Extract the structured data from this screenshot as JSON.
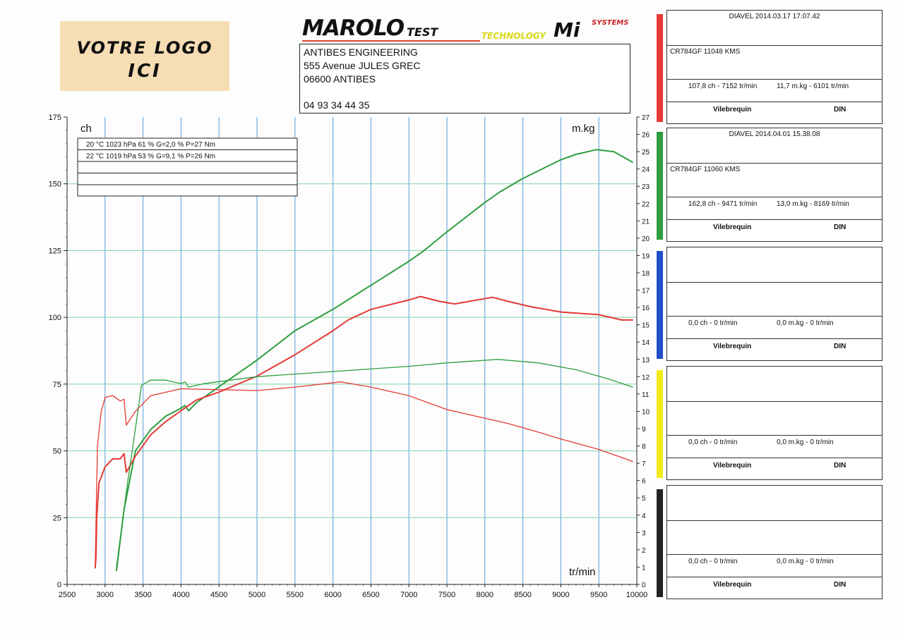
{
  "logo": {
    "line1": "VOTRE LOGO",
    "line2": "ICI"
  },
  "brand": {
    "name": "MAROLO",
    "suffix": "TEST",
    "technology": "TECHNOLOGY",
    "mi": "Mi",
    "systems": "SYSTEMS"
  },
  "address": {
    "line1": "ANTIBES ENGINEERING",
    "line2": "555 Avenue JULES GREC",
    "line3": "06600 ANTIBES",
    "phone": "04 93 34 44 35"
  },
  "legend_table": {
    "rows": [
      "20 °C   1023 hPa   61 %   G=2,0 %   P=27 Nm",
      "22 °C   1019 hPa   53 %   G=9,1 %   P=26 Nm",
      "",
      ""
    ]
  },
  "runs": [
    {
      "color": "#e53935",
      "header": "DIAVEL   2014.03.17 17.07.42",
      "vehicle": "CR784GF    11048 KMS",
      "power": "107,8 ch - 7152 tr/min",
      "torque": "11,7 m.kg - 6101 tr/min",
      "mode": "Vilebrequin",
      "norm": "DIN"
    },
    {
      "color": "#2e9e3e",
      "header": "DIAVEL   2014.04.01 15.38.08",
      "vehicle": "CR784GF   11060 KMS",
      "power": "162,8 ch - 9471 tr/min",
      "torque": "13,0 m.kg - 8169 tr/min",
      "mode": "Vilebrequin",
      "norm": "DIN"
    },
    {
      "color": "#1e4fc8",
      "header": "",
      "vehicle": "",
      "power": "0,0 ch - 0 tr/min",
      "torque": "0,0 m.kg - 0 tr/min",
      "mode": "Vilebrequin",
      "norm": "DIN"
    },
    {
      "color": "#f2ea1a",
      "header": "",
      "vehicle": "",
      "power": "0,0 ch - 0 tr/min",
      "torque": "0,0 m.kg - 0 tr/min",
      "mode": "Vilebrequin",
      "norm": "DIN"
    },
    {
      "color": "#222222",
      "header": "",
      "vehicle": "",
      "power": "0,0 ch - 0 tr/min",
      "torque": "0,0 m.kg - 0 tr/min",
      "mode": "Vilebrequin",
      "norm": "DIN"
    }
  ],
  "chart_data": {
    "type": "line",
    "xlabel": "tr/min",
    "ylabel": "ch",
    "y2label": "m.kg",
    "xlim": [
      2500,
      10000
    ],
    "ylim": [
      0,
      175
    ],
    "y2lim": [
      0,
      27
    ],
    "xticks": [
      2500,
      3000,
      3500,
      4000,
      4500,
      5000,
      5500,
      6000,
      6500,
      7000,
      7500,
      8000,
      8500,
      9000,
      9500,
      10000
    ],
    "yticks": [
      0,
      25,
      50,
      75,
      100,
      125,
      150,
      175
    ],
    "y2ticks": [
      0,
      1,
      2,
      3,
      4,
      5,
      6,
      7,
      8,
      9,
      10,
      11,
      12,
      13,
      14,
      15,
      16,
      17,
      18,
      19,
      20,
      21,
      22,
      23,
      24,
      25,
      26,
      27
    ],
    "grid": true,
    "series": [
      {
        "color": "#2e9e3e",
        "axis": "power",
        "width": 2,
        "points": [
          [
            3150,
            5
          ],
          [
            3250,
            28
          ],
          [
            3400,
            50
          ],
          [
            3600,
            58
          ],
          [
            3800,
            63
          ],
          [
            4000,
            66
          ],
          [
            4050,
            67
          ],
          [
            4100,
            65
          ],
          [
            4200,
            68
          ],
          [
            4500,
            74
          ],
          [
            5000,
            84
          ],
          [
            5500,
            95
          ],
          [
            6000,
            103
          ],
          [
            6500,
            112
          ],
          [
            7000,
            121
          ],
          [
            7200,
            125
          ],
          [
            7500,
            132
          ],
          [
            8000,
            143
          ],
          [
            8200,
            147
          ],
          [
            8500,
            152
          ],
          [
            9000,
            159
          ],
          [
            9200,
            161
          ],
          [
            9471,
            162.8
          ],
          [
            9700,
            162
          ],
          [
            9950,
            158
          ]
        ]
      },
      {
        "color": "#e53935",
        "axis": "power",
        "width": 2,
        "points": [
          [
            2870,
            6
          ],
          [
            2880,
            10
          ],
          [
            2890,
            25
          ],
          [
            2920,
            38
          ],
          [
            3000,
            44
          ],
          [
            3100,
            47
          ],
          [
            3200,
            47
          ],
          [
            3250,
            49
          ],
          [
            3280,
            42
          ],
          [
            3400,
            48
          ],
          [
            3600,
            56
          ],
          [
            3800,
            61
          ],
          [
            4000,
            65
          ],
          [
            4200,
            69
          ],
          [
            4500,
            72
          ],
          [
            5000,
            78
          ],
          [
            5500,
            86
          ],
          [
            6000,
            95
          ],
          [
            6200,
            99
          ],
          [
            6500,
            103
          ],
          [
            7000,
            106.5
          ],
          [
            7152,
            107.8
          ],
          [
            7400,
            106
          ],
          [
            7600,
            105
          ],
          [
            7800,
            106
          ],
          [
            8100,
            107.5
          ],
          [
            8300,
            106
          ],
          [
            8600,
            104
          ],
          [
            9000,
            102
          ],
          [
            9500,
            101
          ],
          [
            9800,
            99
          ],
          [
            9950,
            99
          ]
        ]
      },
      {
        "color": "#2e9e3e",
        "axis": "torque",
        "width": 1.3,
        "points": [
          [
            3150,
            1
          ],
          [
            3300,
            6
          ],
          [
            3400,
            9
          ],
          [
            3480,
            11.5
          ],
          [
            3600,
            11.8
          ],
          [
            3800,
            11.8
          ],
          [
            4000,
            11.6
          ],
          [
            4050,
            11.7
          ],
          [
            4100,
            11.4
          ],
          [
            4300,
            11.6
          ],
          [
            5000,
            12.0
          ],
          [
            6000,
            12.3
          ],
          [
            7000,
            12.6
          ],
          [
            7500,
            12.8
          ],
          [
            8169,
            13.0
          ],
          [
            8700,
            12.8
          ],
          [
            9200,
            12.4
          ],
          [
            9600,
            11.9
          ],
          [
            9950,
            11.4
          ]
        ]
      },
      {
        "color": "#e53935",
        "axis": "torque",
        "width": 1.3,
        "points": [
          [
            2870,
            1
          ],
          [
            2900,
            8
          ],
          [
            2950,
            10
          ],
          [
            3000,
            10.8
          ],
          [
            3100,
            10.9
          ],
          [
            3200,
            10.6
          ],
          [
            3250,
            10.7
          ],
          [
            3280,
            9.2
          ],
          [
            3400,
            10.0
          ],
          [
            3600,
            10.9
          ],
          [
            4000,
            11.3
          ],
          [
            5000,
            11.2
          ],
          [
            5500,
            11.4
          ],
          [
            6101,
            11.7
          ],
          [
            6500,
            11.4
          ],
          [
            7000,
            10.9
          ],
          [
            7500,
            10.1
          ],
          [
            8000,
            9.6
          ],
          [
            8300,
            9.3
          ],
          [
            8700,
            8.8
          ],
          [
            9000,
            8.4
          ],
          [
            9500,
            7.8
          ],
          [
            9950,
            7.1
          ]
        ]
      }
    ]
  }
}
